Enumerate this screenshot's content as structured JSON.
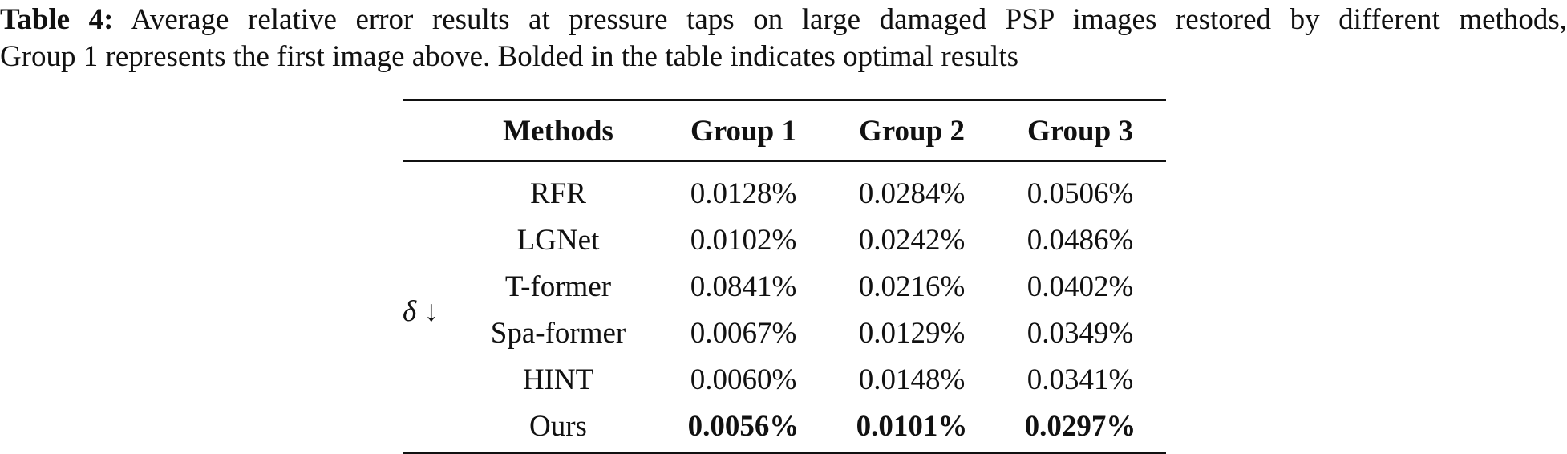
{
  "caption": {
    "label": "Table 4:",
    "line1": "Average relative error results at pressure taps on large damaged PSP images restored by different methods,",
    "line2": "Group 1 represents the first image above. Bolded in the table indicates optimal results"
  },
  "table": {
    "headers": [
      "",
      "Methods",
      "Group 1",
      "Group 2",
      "Group 3"
    ],
    "metric_label": "δ ↓",
    "rows": [
      {
        "method": "RFR",
        "values": [
          "0.0128%",
          "0.0284%",
          "0.0506%"
        ],
        "best": [
          false,
          false,
          false
        ]
      },
      {
        "method": "LGNet",
        "values": [
          "0.0102%",
          "0.0242%",
          "0.0486%"
        ],
        "best": [
          false,
          false,
          false
        ]
      },
      {
        "method": "T-former",
        "values": [
          "0.0841%",
          "0.0216%",
          "0.0402%"
        ],
        "best": [
          false,
          false,
          false
        ]
      },
      {
        "method": "Spa-former",
        "values": [
          "0.0067%",
          "0.0129%",
          "0.0349%"
        ],
        "best": [
          false,
          false,
          false
        ]
      },
      {
        "method": "HINT",
        "values": [
          "0.0060%",
          "0.0148%",
          "0.0341%"
        ],
        "best": [
          false,
          false,
          false
        ]
      },
      {
        "method": "Ours",
        "values": [
          "0.0056%",
          "0.0101%",
          "0.0297%"
        ],
        "best": [
          true,
          true,
          true
        ]
      }
    ]
  }
}
